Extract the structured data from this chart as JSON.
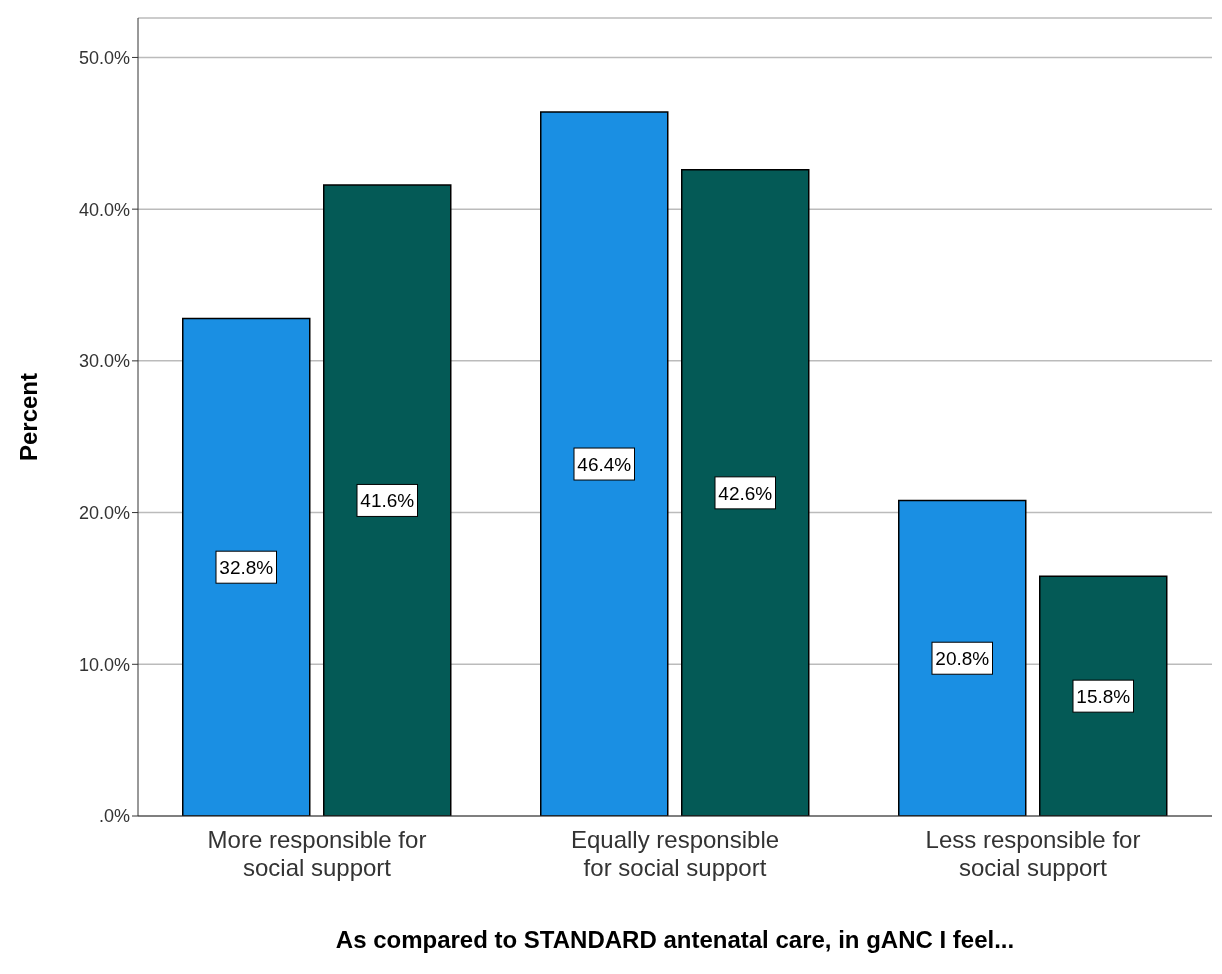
{
  "chart_data": {
    "type": "bar",
    "xlabel": "As compared to STANDARD antenatal care, in gANC I feel...",
    "ylabel": "Percent",
    "categories": [
      "More responsible for social support",
      "Equally responsible for social support",
      "Less responsible for social support"
    ],
    "series": [
      {
        "color": "#1a8fe3",
        "values": [
          32.8,
          46.4,
          20.8
        ],
        "value_labels": [
          "32.8%",
          "46.4%",
          "20.8%"
        ]
      },
      {
        "color": "#045a56",
        "values": [
          41.6,
          42.6,
          15.8
        ],
        "value_labels": [
          "41.6%",
          "42.6%",
          "15.8%"
        ]
      }
    ],
    "ylim": [
      0,
      52.6
    ],
    "yticks": [
      {
        "value": 0,
        "label": ".0%"
      },
      {
        "value": 10,
        "label": "10.0%"
      },
      {
        "value": 20,
        "label": "20.0%"
      },
      {
        "value": 30,
        "label": "30.0%"
      },
      {
        "value": 40,
        "label": "40.0%"
      },
      {
        "value": 50,
        "label": "50.0%"
      }
    ],
    "grid": "y",
    "legend": false
  }
}
